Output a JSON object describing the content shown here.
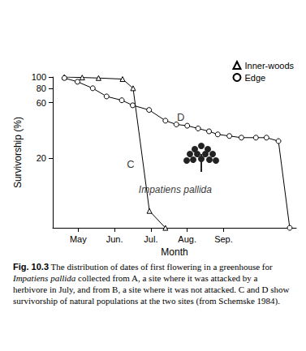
{
  "chart_data": {
    "type": "line",
    "y_label": "Survivorship (%)",
    "x_label": "Month",
    "log": "y",
    "grid": false,
    "legend": "top-right",
    "xlim": [
      0.3,
      7
    ],
    "xticks": [
      {
        "value": 1,
        "label": "May"
      },
      {
        "value": 2,
        "label": "Jun."
      },
      {
        "value": 3,
        "label": "Jul."
      },
      {
        "value": 4,
        "label": "Aug."
      },
      {
        "value": 5,
        "label": "Sep."
      }
    ],
    "ylim": [
      5,
      100
    ],
    "yticks": [
      20,
      60,
      80,
      100
    ],
    "series": [
      {
        "name": "Inner-woods",
        "color": "#000000",
        "marker": "triangle",
        "line_style": "solid",
        "x": [
          0.62,
          1.11,
          1.56,
          2.22,
          2.51,
          2.96,
          3.4
        ],
        "values": [
          100,
          99,
          98,
          96,
          80,
          7,
          5
        ]
      },
      {
        "name": "Edge",
        "color": "#000000",
        "marker": "circle",
        "line_style": "solid",
        "x": [
          0.62,
          0.98,
          1.4,
          1.78,
          2.2,
          2.5,
          2.95,
          3.4,
          3.7,
          4.0,
          4.3,
          4.6,
          4.84,
          5.16,
          5.49,
          5.89,
          6.18,
          6.51,
          6.82
        ],
        "values": [
          98,
          91,
          80,
          68,
          63,
          57,
          52,
          42,
          39,
          38,
          36,
          34,
          32,
          31,
          30,
          30,
          30,
          28,
          5
        ]
      }
    ],
    "annotations": [
      {
        "text": "C",
        "x": 2.44,
        "y": 17.6
      },
      {
        "text": "D",
        "x": 3.82,
        "y": 45
      },
      {
        "text": "Impatiens pallida",
        "x": 3.67,
        "y": 10.6
      }
    ],
    "caption_label": "Fig. 10.3",
    "caption": "The distribution of dates of first flowering in a greenhouse for Impatiens pallida collected from A, a site where it was attacked by a herbivore in July, and from B, a site where it was not attacked. C and D show survivorship of natural populations at the two sites (from Schemske 1984)."
  }
}
